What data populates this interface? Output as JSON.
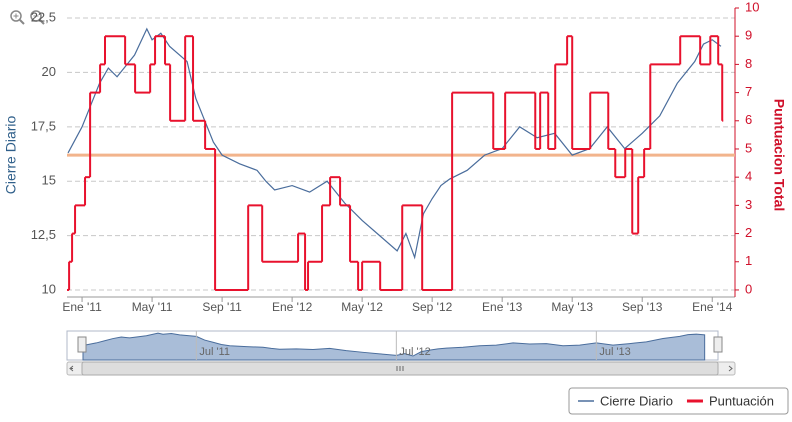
{
  "chart_data": {
    "type": "line",
    "xlim": [
      -0.86,
      37.3
    ],
    "xticks": [
      {
        "value": 0,
        "label": "Ene '11"
      },
      {
        "value": 4,
        "label": "May '11"
      },
      {
        "value": 8,
        "label": "Sep '11"
      },
      {
        "value": 12,
        "label": "Ene '12"
      },
      {
        "value": 16,
        "label": "May '12"
      },
      {
        "value": 20,
        "label": "Sep '12"
      },
      {
        "value": 24,
        "label": "Ene '13"
      },
      {
        "value": 28,
        "label": "May '13"
      },
      {
        "value": 32,
        "label": "Sep '13"
      },
      {
        "value": 36,
        "label": "Ene '14"
      }
    ],
    "ylabel": "Cierre Diario",
    "ylim": [
      9.68,
      22.96
    ],
    "yticks": [
      10,
      {
        "value": 12.5,
        "label": "12,5"
      },
      15,
      {
        "value": 17.5,
        "label": "17,5"
      },
      20,
      {
        "value": 22.5,
        "label": "22,5"
      }
    ],
    "y2label": "Puntuacion Total",
    "y2lim": [
      -0.25,
      10
    ],
    "y2ticks": [
      0,
      1,
      2,
      3,
      4,
      5,
      6,
      7,
      8,
      9,
      10
    ],
    "grid": true,
    "reference_line": {
      "value": 16.2,
      "color": "#f2b48c"
    },
    "series": [
      {
        "name": "Cierre Diario",
        "color": "#4a6d9c",
        "x": [
          -0.8,
          0,
          0.5,
          1,
          1.5,
          2,
          3,
          3.7,
          4,
          4.5,
          5,
          6,
          6.5,
          7,
          7.5,
          8,
          9,
          10,
          10.5,
          11,
          12,
          13,
          14,
          15,
          16,
          17,
          18,
          18.5,
          19,
          19.5,
          20,
          20.5,
          21,
          22,
          23,
          24,
          25,
          26,
          27,
          28,
          29,
          30,
          31,
          32,
          33,
          34,
          35,
          35.5,
          36,
          36.5
        ],
        "values": [
          16.3,
          17.5,
          18.5,
          19.5,
          20.2,
          19.8,
          20.8,
          22,
          21.5,
          21.8,
          21.2,
          20.5,
          18.8,
          17.8,
          16.8,
          16.2,
          15.8,
          15.5,
          15,
          14.6,
          14.8,
          14.5,
          15,
          14,
          13.2,
          12.5,
          11.8,
          12.6,
          11.5,
          13.5,
          14.2,
          14.8,
          15.1,
          15.5,
          16.2,
          16.5,
          17.5,
          17,
          17.2,
          16.2,
          16.5,
          17.5,
          16.5,
          17.2,
          18,
          19.5,
          20.5,
          21.3,
          21.5,
          21.2
        ]
      },
      {
        "name": "Puntuación",
        "color": "#e8112d",
        "axis": "y2",
        "step": true,
        "x": [
          -0.86,
          -0.74,
          -0.57,
          -0.4,
          0.17,
          0.46,
          1.03,
          1.31,
          2.46,
          3.03,
          3.89,
          4.17,
          4.74,
          5.03,
          5.89,
          6.34,
          7.03,
          7.6,
          9.49,
          10.29,
          12.34,
          12.74,
          12.91,
          13.71,
          14.17,
          14.74,
          15.31,
          15.77,
          16,
          17.03,
          18.29,
          19.43,
          21.14,
          23.49,
          24.17,
          25.89,
          26.17,
          26.63,
          27.03,
          27.71,
          28,
          29.03,
          30.06,
          30.46,
          31.03,
          31.43,
          31.77,
          32.11,
          32.46,
          34.17,
          35.31,
          35.89,
          36.34,
          36.57
        ],
        "values": [
          0,
          1,
          2,
          3,
          4,
          7,
          8,
          9,
          8,
          7,
          8,
          9,
          8,
          6,
          9,
          6,
          5,
          0,
          3,
          1,
          2,
          0,
          1,
          3,
          4,
          3,
          1,
          0,
          1,
          0,
          3,
          0,
          7,
          5,
          7,
          5,
          7,
          5,
          8,
          9,
          5,
          7,
          5,
          4,
          5,
          2,
          4,
          5,
          8,
          9,
          8,
          9,
          8,
          6
        ]
      }
    ],
    "navigator": {
      "xticks": [
        {
          "value": 6,
          "label": "Jul '11"
        },
        {
          "value": 18,
          "label": "Jul '12"
        },
        {
          "value": 30,
          "label": "Jul '13"
        }
      ]
    },
    "legend": "bottom-right"
  }
}
